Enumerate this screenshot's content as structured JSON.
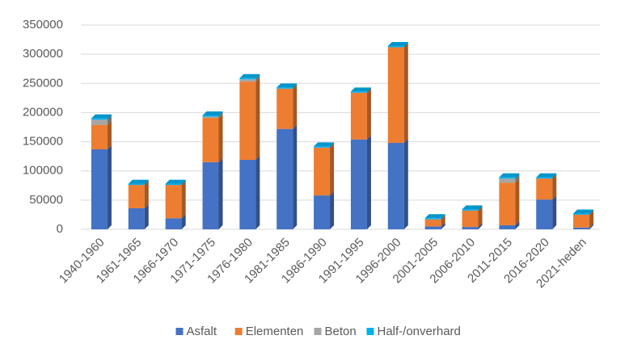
{
  "chart_data": {
    "type": "bar",
    "stacked": true,
    "categories": [
      "1940-1960",
      "1961-1965",
      "1966-1970",
      "1971-1975",
      "1976-1980",
      "1981-1985",
      "1986-1990",
      "1991-1995",
      "1996-2000",
      "2001-2005",
      "2006-2010",
      "2011-2015",
      "2016-2020",
      "2021-heden"
    ],
    "series": [
      {
        "name": "Asfalt",
        "color": "#4472c4",
        "values": [
          137000,
          36000,
          19000,
          115000,
          119000,
          172000,
          58000,
          154000,
          148000,
          5000,
          4000,
          7000,
          51000,
          3000
        ]
      },
      {
        "name": "Elementen",
        "color": "#ed7d31",
        "values": [
          42000,
          40000,
          57000,
          76000,
          134000,
          69000,
          82000,
          80000,
          164000,
          12000,
          28000,
          73000,
          36000,
          22000
        ]
      },
      {
        "name": "Beton",
        "color": "#a5a5a5",
        "values": [
          9000,
          0,
          0,
          2000,
          4000,
          0,
          0,
          0,
          0,
          0,
          0,
          7000,
          0,
          0
        ]
      },
      {
        "name": "Half-/onverhard",
        "color": "#00b0f0",
        "values": [
          2000,
          2000,
          2000,
          2000,
          2000,
          2000,
          2000,
          2000,
          2000,
          2000,
          2000,
          2000,
          2000,
          2000
        ]
      }
    ],
    "ylim": [
      0,
      350000
    ],
    "yticks": [
      0,
      50000,
      100000,
      150000,
      200000,
      250000,
      300000,
      350000
    ],
    "grid": true,
    "legend": "bottom"
  }
}
